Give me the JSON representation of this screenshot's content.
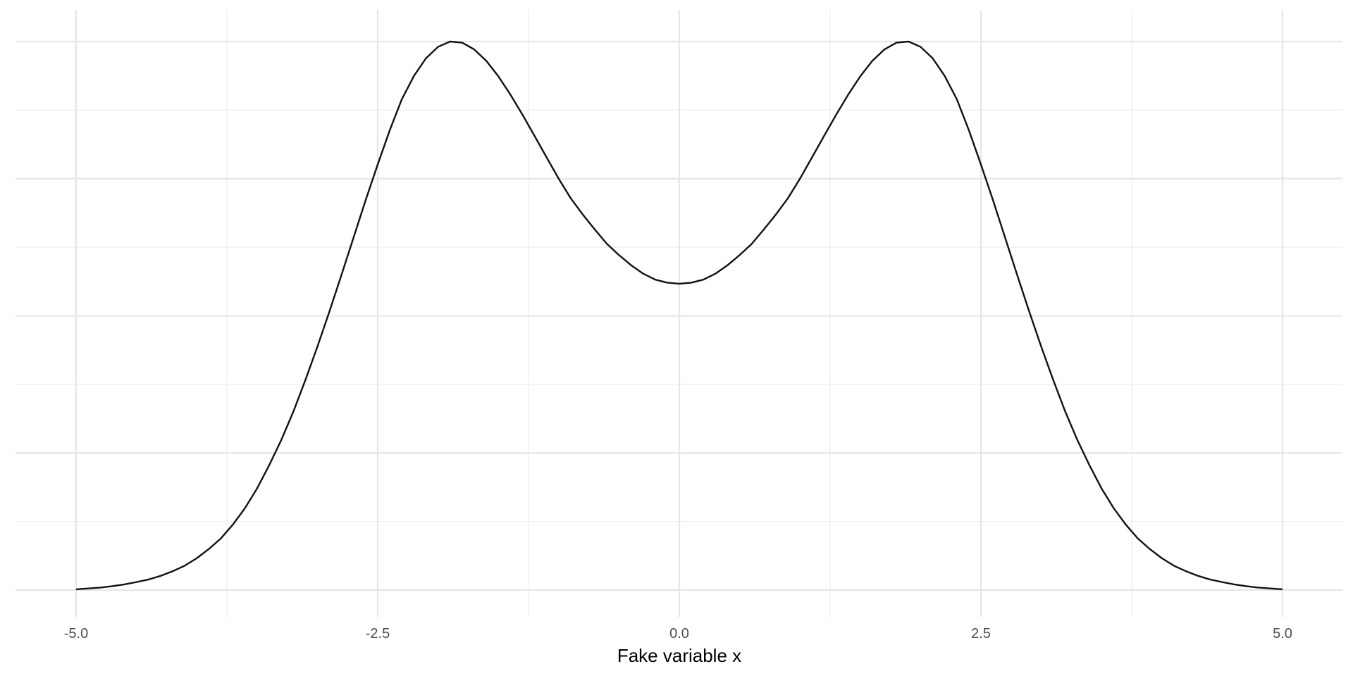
{
  "chart_data": {
    "type": "line",
    "title": "",
    "xlabel": "Fake variable x",
    "ylabel": "",
    "xlim": [
      -5.2,
      5.2
    ],
    "ylim": [
      0,
      1
    ],
    "x_ticks": [
      "-5.0",
      "-2.5",
      "0.0",
      "2.5",
      "5.0"
    ],
    "x_tick_values": [
      -5.0,
      -2.5,
      0.0,
      2.5,
      5.0
    ],
    "x_minor_gridlines": [
      -3.75,
      -1.25,
      1.25,
      3.75
    ],
    "y_major_gridlines": [
      0,
      0.25,
      0.5,
      0.75,
      1.0
    ],
    "y_minor_gridlines": [
      0.125,
      0.375,
      0.625,
      0.875
    ],
    "grid": true,
    "series": [
      {
        "color": "#111111",
        "x": [
          -5.0,
          -4.9,
          -4.8,
          -4.7,
          -4.6,
          -4.5,
          -4.4,
          -4.3,
          -4.2,
          -4.1,
          -4.0,
          -3.9,
          -3.8,
          -3.7,
          -3.6,
          -3.5,
          -3.4,
          -3.3,
          -3.2,
          -3.1,
          -3.0,
          -2.9,
          -2.8,
          -2.7,
          -2.6,
          -2.5,
          -2.4,
          -2.3,
          -2.2,
          -2.1,
          -2.0,
          -1.9,
          -1.8,
          -1.7,
          -1.6,
          -1.5,
          -1.4,
          -1.3,
          -1.2,
          -1.1,
          -1.0,
          -0.9,
          -0.8,
          -0.7,
          -0.6,
          -0.5,
          -0.4,
          -0.3,
          -0.2,
          -0.1,
          0.0,
          0.1,
          0.2,
          0.3,
          0.4,
          0.5,
          0.6,
          0.7,
          0.8,
          0.9,
          1.0,
          1.1,
          1.2,
          1.3,
          1.4,
          1.5,
          1.6,
          1.7,
          1.8,
          1.9,
          2.0,
          2.1,
          2.2,
          2.3,
          2.4,
          2.5,
          2.6,
          2.7,
          2.8,
          2.9,
          3.0,
          3.1,
          3.2,
          3.3,
          3.4,
          3.5,
          3.6,
          3.7,
          3.8,
          3.9,
          4.0,
          4.1,
          4.2,
          4.3,
          4.4,
          4.5,
          4.6,
          4.7,
          4.8,
          4.9,
          5.0
        ],
        "y": [
          0.0013,
          0.0029,
          0.0045,
          0.0072,
          0.0104,
          0.0146,
          0.0193,
          0.0259,
          0.0344,
          0.0444,
          0.0581,
          0.0748,
          0.0942,
          0.1196,
          0.1495,
          0.1852,
          0.2274,
          0.2733,
          0.3249,
          0.3826,
          0.4437,
          0.508,
          0.5748,
          0.6428,
          0.7108,
          0.7759,
          0.8383,
          0.8949,
          0.9372,
          0.9695,
          0.9903,
          1.0,
          0.998,
          0.9856,
          0.9648,
          0.9366,
          0.9033,
          0.8666,
          0.828,
          0.7888,
          0.75,
          0.7143,
          0.6846,
          0.6573,
          0.6311,
          0.6107,
          0.5923,
          0.5769,
          0.566,
          0.5604,
          0.5585,
          0.5604,
          0.566,
          0.5769,
          0.5923,
          0.6107,
          0.6311,
          0.6573,
          0.6846,
          0.7143,
          0.75,
          0.7888,
          0.828,
          0.8666,
          0.9033,
          0.9366,
          0.9648,
          0.9856,
          0.998,
          1.0,
          0.9903,
          0.9695,
          0.9372,
          0.8949,
          0.8383,
          0.7759,
          0.7108,
          0.6428,
          0.5748,
          0.508,
          0.4437,
          0.3826,
          0.3249,
          0.2733,
          0.2274,
          0.1852,
          0.1495,
          0.1196,
          0.0942,
          0.0748,
          0.0581,
          0.0444,
          0.0344,
          0.0259,
          0.0193,
          0.0146,
          0.0104,
          0.0072,
          0.0045,
          0.0029,
          0.0013
        ]
      }
    ]
  }
}
